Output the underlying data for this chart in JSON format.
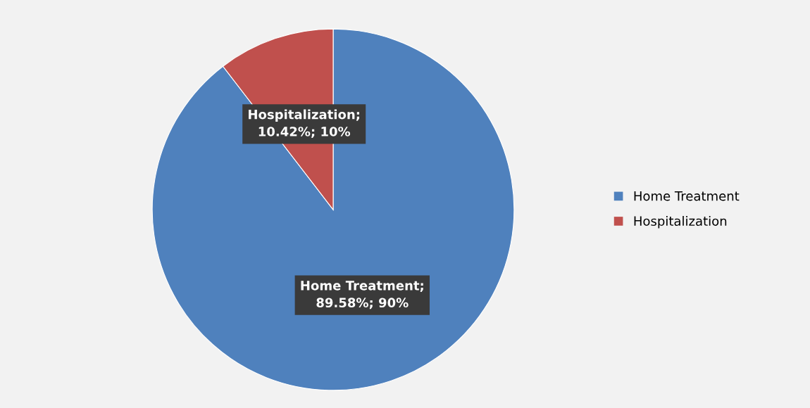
{
  "chart_data": {
    "type": "pie",
    "categories": [
      "Home Treatment",
      "Hospitalization"
    ],
    "values": [
      89.58,
      10.42
    ],
    "colors": [
      "#4f81bd",
      "#c0504d"
    ],
    "value_labels": [
      "Home Treatment;\n89.58%; 90%",
      "Hospitalization;\n10.42%; 10%"
    ],
    "legend": "right"
  }
}
